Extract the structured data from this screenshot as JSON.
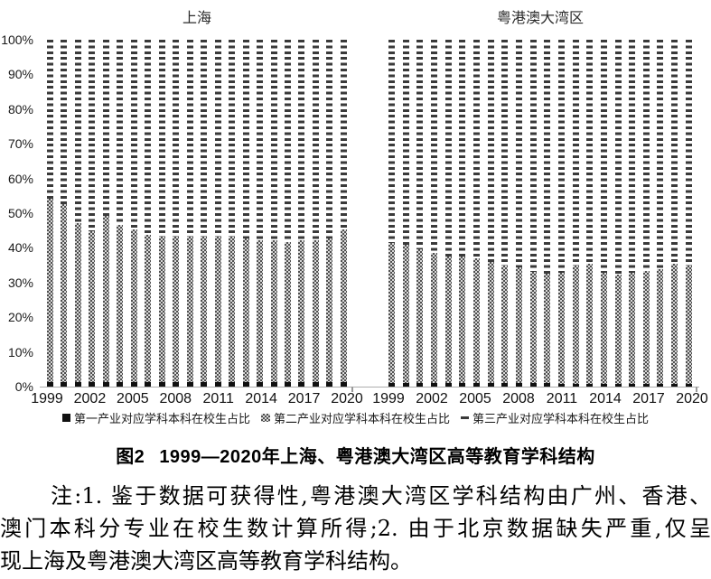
{
  "figure": {
    "caption_prefix": "图2",
    "caption_title": "1999—2020年上海、粤港澳大湾区高等教育学科结构",
    "notes": {
      "line1": "注:1. 鉴于数据可获得性,粤港澳大湾区学科结构由广州、香港、",
      "line2": "澳门本科分专业在校生数计算所得;2. 由于北京数据缺失严重,仅呈",
      "line3": "现上海及粤港澳大湾区高等教育学科结构。"
    }
  },
  "legend": [
    {
      "label": "第一产业对应学科本科在校生占比",
      "swatch": "solid-black-square",
      "color": "#111111"
    },
    {
      "label": "第二产业对应学科本科在校生占比",
      "swatch": "checkered-square",
      "color": "#4f4f4f"
    },
    {
      "label": "第三产业对应学科本科在校生占比",
      "swatch": "short-dash",
      "color": "#3a3a3a"
    }
  ],
  "chart_data": {
    "type": "bar",
    "subtype": "stacked-100-percent-column",
    "unit": "%",
    "ylim": [
      0,
      100
    ],
    "grid": false,
    "yticks": [
      "100%",
      "90%",
      "80%",
      "70%",
      "60%",
      "50%",
      "40%",
      "30%",
      "20%",
      "10%",
      "0%"
    ],
    "x_years": [
      1999,
      2000,
      2001,
      2002,
      2003,
      2004,
      2005,
      2006,
      2007,
      2008,
      2009,
      2010,
      2011,
      2012,
      2013,
      2014,
      2015,
      2016,
      2017,
      2018,
      2019,
      2020
    ],
    "x_tick_years": [
      1999,
      2002,
      2005,
      2008,
      2011,
      2014,
      2017,
      2020
    ],
    "panels": [
      {
        "title": "上海",
        "series": [
          {
            "name": "第一产业对应学科本科在校生占比",
            "pattern": "solid",
            "values": [
              1.2,
              1.2,
              1.2,
              1.2,
              1.2,
              1.2,
              1.2,
              1.2,
              1.2,
              1.2,
              1.2,
              1.2,
              1.2,
              1.2,
              1.2,
              1.2,
              1.2,
              1.2,
              1.2,
              1.2,
              1.2,
              1.2
            ]
          },
          {
            "name": "第二产业对应学科本科在校生占比",
            "pattern": "checkered",
            "values": [
              53,
              51.5,
              46,
              43.5,
              48,
              45.5,
              44,
              42.5,
              42,
              42,
              42,
              42,
              42,
              42,
              41.5,
              41,
              41,
              40.5,
              41,
              41,
              41.5,
              44
            ]
          },
          {
            "name": "第三产业对应学科本科在校生占比",
            "pattern": "dashed",
            "values": [
              45.8,
              47.3,
              52.8,
              55.3,
              50.8,
              53.3,
              54.8,
              56.3,
              56.8,
              56.8,
              56.8,
              56.8,
              56.8,
              56.8,
              57.3,
              57.8,
              57.8,
              58.3,
              57.8,
              57.8,
              57.3,
              54.8
            ]
          }
        ]
      },
      {
        "title": "粤港澳大湾区",
        "series": [
          {
            "name": "第一产业对应学科本科在校生占比",
            "pattern": "solid",
            "values": [
              1,
              1,
              1,
              1,
              1,
              1,
              1,
              1,
              1,
              1,
              1,
              1,
              0.8,
              0.8,
              0.8,
              0.8,
              0.8,
              0.8,
              0.8,
              0.8,
              0.8,
              0.8
            ]
          },
          {
            "name": "第二产业对应学科本科在校生占比",
            "pattern": "checkered",
            "values": [
              40.5,
              40,
              38.5,
              37.5,
              36.5,
              36.5,
              36,
              35,
              34,
              33.5,
              32,
              31.5,
              32,
              34,
              34.5,
              32,
              31.5,
              32,
              32.5,
              33,
              34.5,
              34
            ]
          },
          {
            "name": "第三产业对应学科本科在校生占比",
            "pattern": "dashed",
            "values": [
              58.5,
              59,
              60.5,
              61.5,
              62.5,
              62.5,
              63,
              64,
              65,
              65.5,
              67,
              67.5,
              67.2,
              65.2,
              64.7,
              67.2,
              67.7,
              67.2,
              66.7,
              66.2,
              64.7,
              65.2
            ]
          }
        ]
      }
    ]
  }
}
